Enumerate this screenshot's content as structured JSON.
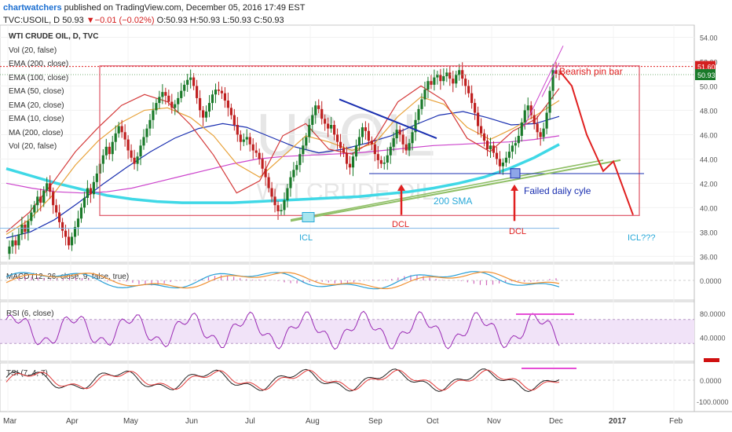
{
  "header": {
    "publisher": "chartwatchers",
    "published_text": "published on TradingView.com, December 05, 2016 17:49 EST",
    "symbol": "TVC:USOIL, D",
    "last": "50.93",
    "change": "▼−0.01 (−0.02%)",
    "ohlc": "O:50.93 H:50.93 L:50.93 C:50.93"
  },
  "indicators": [
    "WTI CRUDE OIL, D, TVC",
    "Vol (20, false)",
    "EMA (200, close)",
    "EMA (100, close)",
    "EMA (50, close)",
    "EMA (20, close)",
    "EMA (10, close)",
    "MA (200, close)",
    "Vol (20, false)"
  ],
  "watermark": {
    "big": "USOIL",
    "small": "WTI CRUDE OIL"
  },
  "colors": {
    "ema200": "#3fd8e6",
    "ema100": "#cc44cc",
    "ema50": "#1a2fb0",
    "ema20": "#e8a23a",
    "ema10": "#d43a3a",
    "ma200": "#8fbf66",
    "candle_up": "#1a7a2a",
    "candle_down": "#bf2020",
    "box": "#e06070",
    "annot_red": "#e02020",
    "annot_cyan": "#27a8d8",
    "macd_line": "#2aa0d6",
    "signal_line": "#f09030",
    "rsi_line": "#9a2ab4",
    "tsi_black": "#222222",
    "tsi_red": "#e23a3a"
  },
  "chart_data": [
    {
      "type": "candlestick",
      "name": "price",
      "ylim": [
        35.5,
        55.0
      ],
      "y_ticks": [
        "54.00",
        "52.00",
        "50.00",
        "48.00",
        "46.00",
        "44.00",
        "42.00",
        "40.00",
        "38.00",
        "36.00"
      ],
      "y_tick_values": [
        54,
        52,
        50,
        48,
        46,
        44,
        42,
        40,
        38,
        36
      ],
      "x_ticks": [
        "Mar",
        "Apr",
        "May",
        "Jun",
        "Jul",
        "Aug",
        "Sep",
        "Oct",
        "Nov",
        "Dec",
        "2017",
        "Feb"
      ],
      "price_labels": [
        {
          "text": "51.60",
          "value": 51.6,
          "color": "#d42020"
        },
        {
          "text": "50.93",
          "value": 50.93,
          "color": "#1a7a2a"
        }
      ],
      "closes": [
        36.2,
        36.8,
        37.3,
        36.9,
        37.8,
        38.6,
        38.0,
        38.9,
        39.6,
        40.2,
        40.9,
        40.4,
        41.4,
        42.0,
        41.3,
        40.2,
        39.6,
        38.8,
        38.1,
        37.6,
        36.9,
        37.6,
        38.4,
        39.1,
        40.0,
        40.8,
        41.6,
        41.1,
        42.1,
        42.8,
        43.6,
        44.3,
        45.0,
        44.4,
        45.4,
        46.1,
        46.7,
        46.2,
        45.6,
        44.7,
        44.1,
        43.6,
        44.2,
        45.1,
        45.8,
        46.5,
        47.2,
        48.0,
        48.6,
        49.1,
        49.5,
        49.2,
        48.7,
        48.2,
        48.5,
        49.0,
        49.6,
        50.1,
        50.5,
        50.7,
        50.0,
        49.0,
        48.0,
        47.4,
        47.9,
        48.6,
        49.3,
        49.7,
        49.6,
        49.4,
        48.8,
        48.2,
        47.6,
        46.8,
        46.0,
        45.4,
        45.6,
        45.8,
        45.2,
        44.7,
        44.5,
        44.0,
        43.2,
        42.5,
        41.6,
        40.9,
        40.2,
        39.7,
        39.8,
        40.6,
        41.6,
        42.5,
        43.1,
        43.5,
        44.4,
        45.1,
        45.8,
        46.8,
        47.6,
        48.4,
        48.1,
        47.3,
        46.9,
        46.5,
        46.8,
        46.0,
        45.4,
        44.9,
        44.5,
        43.6,
        43.3,
        44.2,
        45.1,
        45.8,
        46.6,
        46.3,
        45.5,
        45.2,
        44.4,
        43.9,
        43.6,
        43.7,
        44.3,
        45.0,
        45.7,
        46.4,
        46.0,
        45.2,
        44.7,
        45.3,
        46.2,
        47.2,
        48.1,
        48.9,
        49.7,
        50.4,
        50.1,
        50.7,
        50.9,
        50.4,
        50.8,
        51.1,
        50.6,
        50.2,
        50.9,
        51.3,
        50.6,
        50.0,
        49.4,
        48.6,
        47.8,
        46.7,
        46.1,
        45.5,
        44.8,
        45.1,
        44.5,
        44.0,
        43.4,
        43.7,
        44.1,
        44.6,
        45.1,
        45.3,
        45.9,
        47.0,
        48.0,
        48.4,
        47.6,
        46.9,
        46.2,
        45.8,
        46.5,
        47.8,
        49.6,
        51.3,
        51.0,
        50.93
      ],
      "moving_averages": [
        {
          "name": "EMA (200, close)",
          "color": "#3fd8e6",
          "values": [
            43.2,
            42.6,
            42.0,
            41.5,
            41.0,
            40.7,
            40.5,
            40.4,
            40.4,
            40.4,
            40.5,
            40.6,
            40.7,
            40.8,
            40.9,
            41.1,
            41.3,
            41.6,
            42.0,
            42.5,
            43.2,
            44.1,
            45.2
          ]
        },
        {
          "name": "EMA (100, close)",
          "color": "#cc44cc",
          "values": [
            42.0,
            41.6,
            41.3,
            41.2,
            41.3,
            41.6,
            42.1,
            42.6,
            43.1,
            43.6,
            44.0,
            44.2,
            44.3,
            44.4,
            44.5,
            44.7,
            44.9,
            45.1,
            45.2,
            45.3,
            45.4,
            45.6,
            45.9
          ]
        },
        {
          "name": "EMA (50, close)",
          "color": "#1a2fb0",
          "values": [
            37.5,
            38.0,
            39.0,
            40.4,
            41.9,
            43.3,
            44.6,
            45.7,
            46.5,
            46.9,
            46.6,
            45.8,
            45.0,
            44.5,
            44.8,
            45.3,
            45.9,
            46.8,
            47.6,
            47.9,
            47.4,
            46.8,
            46.9,
            47.5
          ]
        },
        {
          "name": "EMA (20, close)",
          "color": "#e8a23a",
          "values": [
            37.8,
            39.0,
            41.0,
            43.5,
            45.5,
            47.0,
            48.0,
            48.2,
            47.4,
            45.9,
            43.6,
            42.5,
            44.2,
            45.9,
            45.4,
            44.7,
            45.3,
            47.5,
            49.1,
            48.5,
            46.6,
            45.6,
            46.5,
            47.6,
            48.8
          ]
        },
        {
          "name": "EMA (10, close)",
          "color": "#d43a3a",
          "values": [
            38.0,
            39.6,
            42.0,
            44.6,
            46.6,
            48.4,
            49.3,
            48.7,
            46.8,
            44.3,
            41.2,
            42.2,
            45.9,
            46.9,
            44.8,
            44.4,
            45.6,
            48.7,
            50.0,
            48.8,
            45.7,
            44.6,
            46.3,
            47.3,
            49.8
          ]
        },
        {
          "name": "MA (200, close)",
          "color": "#8fbf66",
          "values": [
            39.0,
            39.7,
            40.4,
            41.1,
            41.8,
            42.5,
            43.2,
            43.9
          ]
        }
      ]
    },
    {
      "type": "line",
      "name": "MACD (12, 26, close, 9, false, true)",
      "y_ticks": [
        "0.0000"
      ],
      "series": [
        {
          "name": "MACD",
          "color": "#2aa0d6"
        },
        {
          "name": "Signal",
          "color": "#f09030"
        }
      ]
    },
    {
      "type": "line",
      "name": "RSI (6, close)",
      "y_ticks": [
        "80.0000",
        "40.0000"
      ],
      "ylim": [
        0,
        100
      ],
      "bands": [
        30,
        70
      ]
    },
    {
      "type": "line",
      "name": "TSI (7, 4, 7)",
      "y_ticks": [
        "0.0000",
        "-100.0000"
      ],
      "series": [
        {
          "name": "TSI",
          "color": "#222222"
        },
        {
          "name": "Signal",
          "color": "#e23a3a"
        }
      ]
    }
  ],
  "annotations": {
    "bearish": "Bearish pin bar",
    "sma": "200 SMA",
    "failed": "Failed daily cyle",
    "dcl": "DCL",
    "icl": "ICL",
    "icl_q": "ICL???"
  }
}
